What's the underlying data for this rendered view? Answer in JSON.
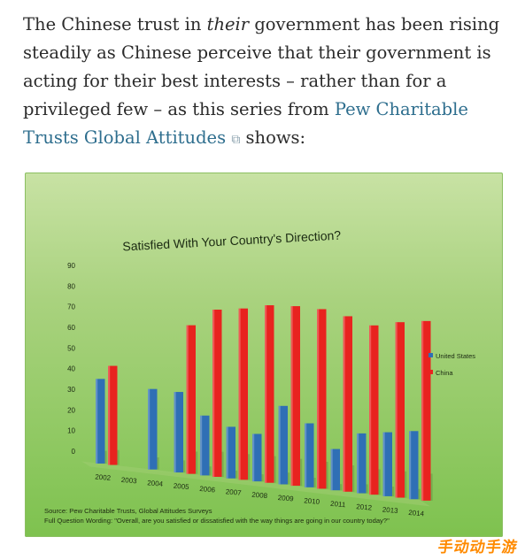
{
  "intro": {
    "part1": "The Chinese trust in ",
    "emph": "their",
    "part2": " government has been rising steadily as Chinese perceive that their government is acting for their best interests – rather than for a privileged few – as this series from ",
    "link_text": "Pew Charitable Trusts Global Attitudes",
    "part3": " shows:"
  },
  "chart_data": {
    "type": "bar",
    "title": "Satisfied With Your Country's Direction?",
    "categories": [
      "2002",
      "2003",
      "2004",
      "2005",
      "2006",
      "2007",
      "2008",
      "2009",
      "2010",
      "2011",
      "2012",
      "2013",
      "2014"
    ],
    "series": [
      {
        "name": "United States",
        "color": "#2f6fb5",
        "values": [
          41,
          null,
          39,
          39,
          29,
          25,
          23,
          38,
          31,
          20,
          29,
          31,
          33
        ]
      },
      {
        "name": "China",
        "color": "#e8231f",
        "values": [
          48,
          null,
          null,
          72,
          81,
          83,
          86,
          87,
          87,
          85,
          82,
          85,
          87
        ]
      }
    ],
    "yticks": [
      0,
      10,
      20,
      30,
      40,
      50,
      60,
      70,
      80,
      90
    ],
    "ylim": [
      0,
      90
    ],
    "legend_position": "right",
    "grid": false
  },
  "source": {
    "line1": "Source: Pew Charitable Trusts, Global Attitudes Surveys",
    "line2": "Full Question Wording: \"Overall, are you satisfied or dissatisfied with the way things are going in our country today?\""
  },
  "watermark": "手动动手游"
}
